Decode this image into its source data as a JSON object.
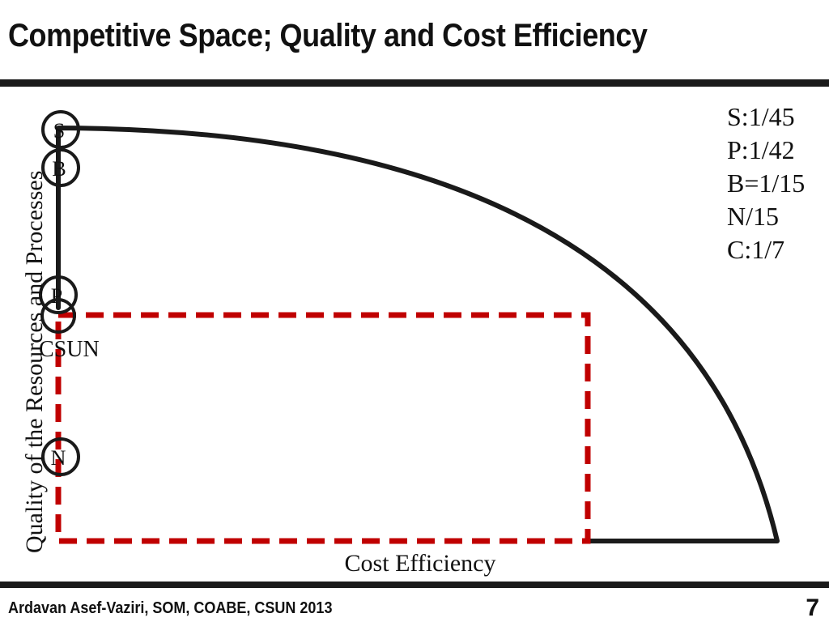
{
  "slide": {
    "title": "Competitive Space;  Quality and Cost Efficiency",
    "footer": "Ardavan  Asef-Vaziri, SOM, COABE, CSUN 2013",
    "page_number": "7"
  },
  "legend": [
    "S:1/45",
    "P:1/42",
    "B=1/15",
    "N/15",
    "C:1/7"
  ],
  "diagram": {
    "y_axis_label": "Quality of the Resources and Processes",
    "x_axis_label": "Cost Efficiency",
    "markers": [
      {
        "id": "s",
        "letter": "S"
      },
      {
        "id": "b",
        "letter": "B"
      },
      {
        "id": "p",
        "letter": "P"
      },
      {
        "id": "c",
        "letter": "C"
      },
      {
        "id": "n",
        "letter": "N"
      }
    ],
    "csun_label": "CSUN",
    "colors": {
      "frontier": "#1a1a1a",
      "csun_box": "#c00000"
    }
  }
}
